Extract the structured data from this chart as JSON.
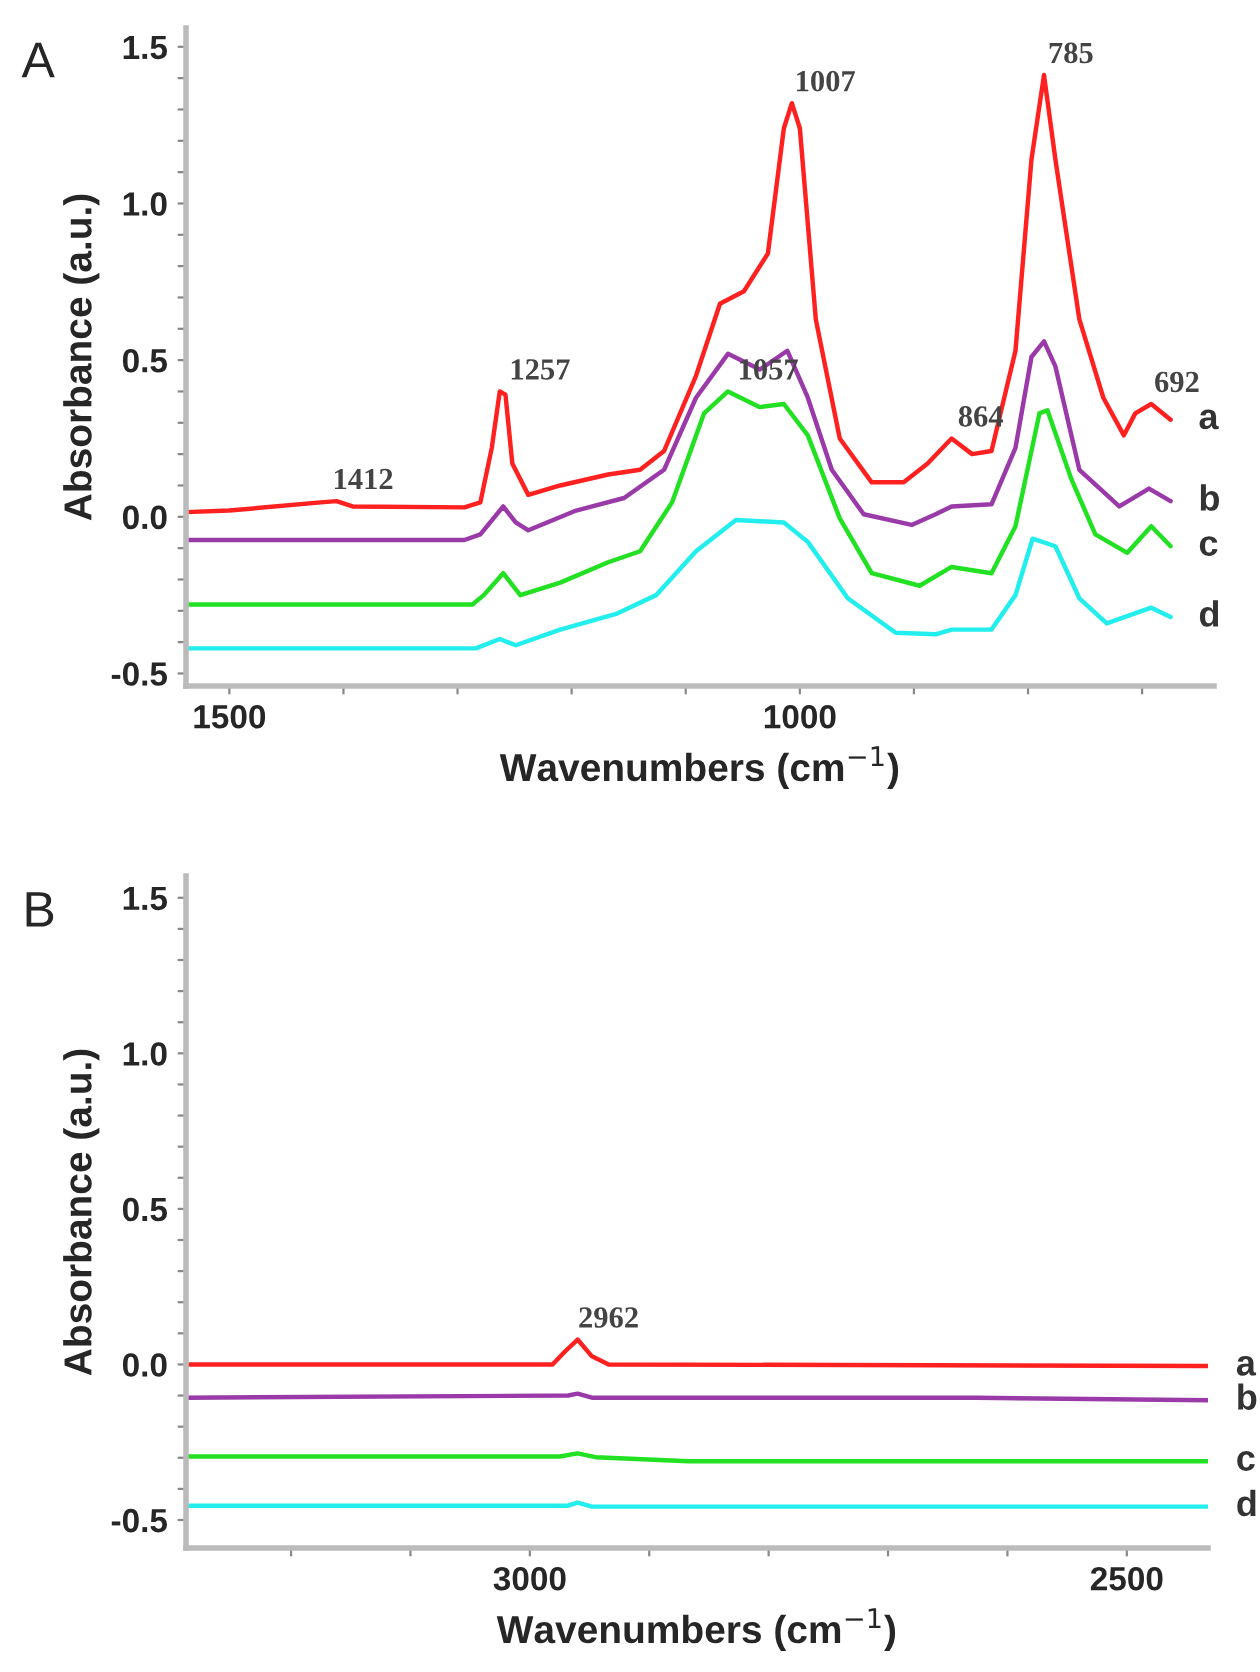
{
  "chart_data": [
    {
      "type": "line",
      "title": "A",
      "xlabel": "Wavenumbers (cm$^{−1}$)",
      "ylabel": "Absorbance (a.u.)",
      "xlim": [
        1538,
        637
      ],
      "ylim": [
        -0.54,
        1.56
      ],
      "xticks": [
        1500,
        {
          "value": 1400,
          "label": null
        },
        {
          "value": 1300,
          "label": null
        },
        {
          "value": 1200,
          "label": null
        },
        {
          "value": 1100,
          "label": null
        },
        1000,
        {
          "value": 900,
          "label": null
        },
        {
          "value": 800,
          "label": null
        },
        {
          "value": 700,
          "label": null
        }
      ],
      "yticks": [
        {
          "value": -0.5,
          "label": "-0.5"
        },
        {
          "value": -0.4,
          "label": null
        },
        {
          "value": -0.3,
          "label": null
        },
        {
          "value": -0.2,
          "label": null
        },
        {
          "value": -0.1,
          "label": null
        },
        {
          "value": 0.0,
          "label": "0.0"
        },
        {
          "value": 0.1,
          "label": null
        },
        {
          "value": 0.2,
          "label": null
        },
        {
          "value": 0.3,
          "label": null
        },
        {
          "value": 0.4,
          "label": null
        },
        {
          "value": 0.5,
          "label": "0.5"
        },
        {
          "value": 0.6,
          "label": null
        },
        {
          "value": 0.7,
          "label": null
        },
        {
          "value": 0.8,
          "label": null
        },
        {
          "value": 0.9,
          "label": null
        },
        {
          "value": 1.0,
          "label": "1.0"
        },
        {
          "value": 1.1,
          "label": null
        },
        {
          "value": 1.2,
          "label": null
        },
        {
          "value": 1.3,
          "label": null
        },
        {
          "value": 1.4,
          "label": null
        },
        {
          "value": 1.5,
          "label": "1.5"
        }
      ],
      "grid": false,
      "legend": false,
      "series": [
        {
          "name": "a",
          "color": "#ff2020",
          "x": [
            1538,
            1500,
            1420,
            1406,
            1392,
            1294,
            1280,
            1270,
            1263,
            1258,
            1252,
            1238,
            1210,
            1168,
            1140,
            1119,
            1091,
            1070,
            1049,
            1028,
            1014,
            1007,
            1000,
            986,
            965,
            937,
            909,
            888,
            867,
            849,
            832,
            811,
            797,
            786,
            776,
            755,
            734,
            716,
            706,
            692,
            675
          ],
          "values": [
            0.015,
            0.02,
            0.046,
            0.05,
            0.033,
            0.03,
            0.046,
            0.22,
            0.4,
            0.39,
            0.17,
            0.07,
            0.1,
            0.135,
            0.15,
            0.21,
            0.45,
            0.68,
            0.72,
            0.84,
            1.24,
            1.32,
            1.24,
            0.63,
            0.25,
            0.11,
            0.11,
            0.17,
            0.25,
            0.2,
            0.21,
            0.53,
            1.14,
            1.41,
            1.14,
            0.63,
            0.38,
            0.26,
            0.33,
            0.36,
            0.31
          ]
        },
        {
          "name": "b",
          "color": "#9a3aa8",
          "x": [
            1538,
            1294,
            1280,
            1260,
            1249,
            1238,
            1196,
            1154,
            1119,
            1091,
            1063,
            1035,
            1011,
            993,
            972,
            944,
            902,
            881,
            867,
            832,
            811,
            797,
            786,
            776,
            755,
            720,
            694,
            675
          ],
          "values": [
            -0.074,
            -0.074,
            -0.056,
            0.033,
            -0.018,
            -0.043,
            0.02,
            0.06,
            0.15,
            0.38,
            0.52,
            0.47,
            0.53,
            0.38,
            0.15,
            0.008,
            -0.026,
            0.008,
            0.033,
            0.04,
            0.22,
            0.51,
            0.56,
            0.48,
            0.15,
            0.033,
            0.09,
            0.05
          ]
        },
        {
          "name": "c",
          "color": "#22e022",
          "x": [
            1538,
            1287,
            1277,
            1260,
            1245,
            1210,
            1168,
            1140,
            1112,
            1084,
            1063,
            1035,
            1014,
            993,
            965,
            937,
            895,
            867,
            832,
            811,
            790,
            783,
            762,
            741,
            713,
            692,
            675
          ],
          "values": [
            -0.28,
            -0.28,
            -0.25,
            -0.18,
            -0.25,
            -0.21,
            -0.145,
            -0.11,
            0.046,
            0.33,
            0.4,
            0.35,
            0.36,
            0.26,
            -0.005,
            -0.18,
            -0.22,
            -0.16,
            -0.18,
            -0.03,
            0.33,
            0.34,
            0.12,
            -0.056,
            -0.115,
            -0.03,
            -0.094
          ]
        },
        {
          "name": "d",
          "color": "#22eeee",
          "x": [
            1538,
            1284,
            1263,
            1249,
            1210,
            1161,
            1126,
            1091,
            1056,
            1014,
            993,
            958,
            916,
            881,
            867,
            832,
            811,
            796,
            776,
            755,
            731,
            692,
            675
          ],
          "values": [
            -0.42,
            -0.42,
            -0.39,
            -0.41,
            -0.36,
            -0.31,
            -0.25,
            -0.11,
            -0.01,
            -0.018,
            -0.08,
            -0.26,
            -0.37,
            -0.375,
            -0.36,
            -0.36,
            -0.25,
            -0.07,
            -0.094,
            -0.26,
            -0.34,
            -0.29,
            -0.32
          ]
        }
      ],
      "annotations": [
        {
          "text": "1412",
          "x": 1412,
          "y": 0.05
        },
        {
          "text": "1257",
          "x": 1257,
          "y": 0.4
        },
        {
          "text": "1007",
          "x": 1007,
          "y": 1.32
        },
        {
          "text": "1057",
          "x": 1057,
          "y": 0.4
        },
        {
          "text": "864",
          "x": 864,
          "y": 0.25
        },
        {
          "text": "785",
          "x": 785,
          "y": 1.41
        },
        {
          "text": "692",
          "x": 692,
          "y": 0.36
        }
      ]
    },
    {
      "type": "line",
      "title": "B",
      "xlabel": "Wavenumbers (cm$^{−1}$)",
      "ylabel": "Absorbance (a.u.)",
      "xlim": [
        3288,
        2432
      ],
      "ylim": [
        -0.59,
        1.57
      ],
      "xticks": [
        {
          "value": 3200,
          "label": null
        },
        {
          "value": 3100,
          "label": null
        },
        3000,
        {
          "value": 2900,
          "label": null
        },
        {
          "value": 2800,
          "label": null
        },
        {
          "value": 2700,
          "label": null
        },
        {
          "value": 2600,
          "label": null
        },
        2500
      ],
      "yticks": [
        {
          "value": -0.5,
          "label": "-0.5"
        },
        {
          "value": -0.4,
          "label": null
        },
        {
          "value": -0.3,
          "label": null
        },
        {
          "value": -0.2,
          "label": null
        },
        {
          "value": -0.1,
          "label": null
        },
        {
          "value": 0.0,
          "label": "0.0"
        },
        {
          "value": 0.1,
          "label": null
        },
        {
          "value": 0.2,
          "label": null
        },
        {
          "value": 0.3,
          "label": null
        },
        {
          "value": 0.4,
          "label": null
        },
        {
          "value": 0.5,
          "label": "0.5"
        },
        {
          "value": 0.6,
          "label": null
        },
        {
          "value": 0.7,
          "label": null
        },
        {
          "value": 0.8,
          "label": null
        },
        {
          "value": 0.9,
          "label": null
        },
        {
          "value": 1.0,
          "label": "1.0"
        },
        {
          "value": 1.1,
          "label": null
        },
        {
          "value": 1.2,
          "label": null
        },
        {
          "value": 1.3,
          "label": null
        },
        {
          "value": 1.4,
          "label": null
        },
        {
          "value": 1.5,
          "label": "1.5"
        }
      ],
      "grid": false,
      "legend": false,
      "series": [
        {
          "name": "a",
          "color": "#ff2020",
          "x": [
            3288,
            2981,
            2971,
            2960,
            2948,
            2934,
            2432
          ],
          "values": [
            0.0,
            0.0,
            0.04,
            0.08,
            0.026,
            0.0,
            -0.005
          ]
        },
        {
          "name": "b",
          "color": "#9a3aa8",
          "x": [
            3288,
            2968,
            2960,
            2948,
            2626,
            2432
          ],
          "values": [
            -0.107,
            -0.1,
            -0.094,
            -0.107,
            -0.107,
            -0.115
          ]
        },
        {
          "name": "c",
          "color": "#22e022",
          "x": [
            3288,
            2975,
            2960,
            2945,
            2867,
            2432
          ],
          "values": [
            -0.296,
            -0.296,
            -0.286,
            -0.298,
            -0.311,
            -0.311
          ]
        },
        {
          "name": "d",
          "color": "#22eeee",
          "x": [
            3288,
            2968,
            2960,
            2948,
            2432
          ],
          "values": [
            -0.454,
            -0.454,
            -0.444,
            -0.457,
            -0.457
          ]
        }
      ],
      "annotations": [
        {
          "text": "2962",
          "x": 2962,
          "y": 0.08
        }
      ]
    }
  ]
}
